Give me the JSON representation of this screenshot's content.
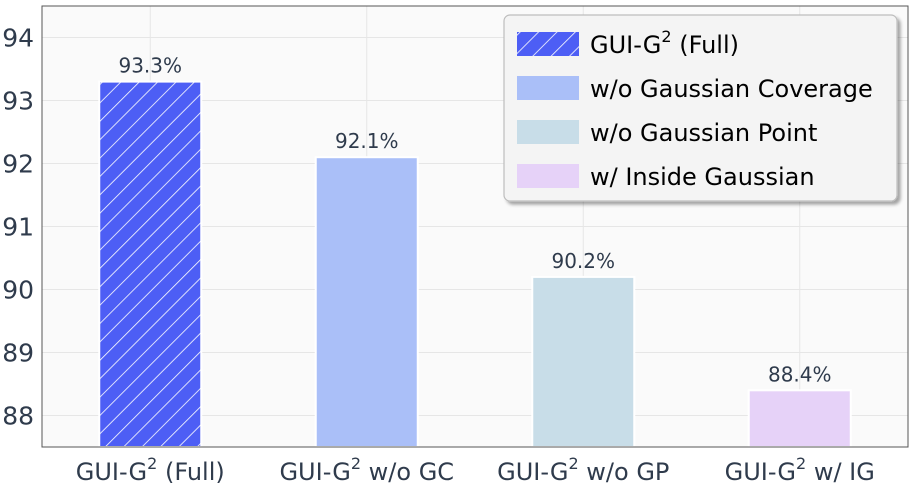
{
  "chart_data": {
    "type": "bar",
    "categories": [
      {
        "base": "GUI-G",
        "sup": "2",
        "rest": " (Full)"
      },
      {
        "base": "GUI-G",
        "sup": "2",
        "rest": " w/o GC"
      },
      {
        "base": "GUI-G",
        "sup": "2",
        "rest": " w/o GP"
      },
      {
        "base": "GUI-G",
        "sup": "2",
        "rest": " w/ IG"
      }
    ],
    "values": [
      93.3,
      92.1,
      90.2,
      88.4
    ],
    "data_labels": [
      "93.3%",
      "92.1%",
      "90.2%",
      "88.4%"
    ],
    "ylim": [
      87.5,
      94.5
    ],
    "yticks": [
      88,
      89,
      90,
      91,
      92,
      93,
      94
    ],
    "grid": true,
    "legend_position": "top-right",
    "legend": [
      {
        "base": "GUI-G",
        "sup": "2",
        "rest": " (Full)",
        "color": "#4d5ef5",
        "hatch": true
      },
      {
        "base": "w/o Gaussian Coverage",
        "sup": "",
        "rest": "",
        "color": "#aabff8",
        "hatch": false
      },
      {
        "base": "w/o Gaussian Point",
        "sup": "",
        "rest": "",
        "color": "#c8dde8",
        "hatch": false
      },
      {
        "base": "w/ Inside Gaussian",
        "sup": "",
        "rest": "",
        "color": "#e6d2f8",
        "hatch": false
      }
    ],
    "colors": [
      "#4d5ef5",
      "#aabff8",
      "#c8dde8",
      "#e6d2f8"
    ],
    "hatched": [
      true,
      false,
      false,
      false
    ]
  }
}
